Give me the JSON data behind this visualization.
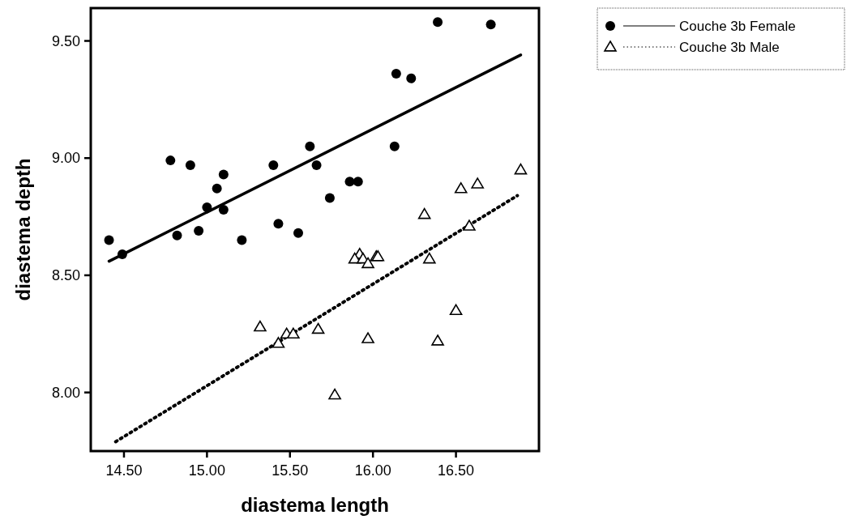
{
  "chart_data": {
    "type": "scatter",
    "xlabel": "diastema length",
    "ylabel": "diastema depth",
    "xlim": [
      14.3,
      17.0
    ],
    "ylim": [
      7.75,
      9.64
    ],
    "xticks": [
      {
        "value": 14.5,
        "label": "14.50"
      },
      {
        "value": 15,
        "label": "15.00"
      },
      {
        "value": 15.5,
        "label": "15.50"
      },
      {
        "value": 16,
        "label": "16.00"
      },
      {
        "value": 16.5,
        "label": "16.50"
      }
    ],
    "yticks": [
      {
        "value": 8,
        "label": "8.00"
      },
      {
        "value": 8.5,
        "label": "8.50"
      },
      {
        "value": 9,
        "label": "9.00"
      },
      {
        "value": 9.5,
        "label": "9.50"
      }
    ],
    "grid": false,
    "legend": "top right",
    "series": [
      {
        "name": "Couche 3b Female",
        "marker": "circle",
        "color": "#000000",
        "x": [
          14.41,
          14.49,
          14.78,
          14.9,
          14.82,
          14.95,
          15.0,
          15.06,
          15.1,
          15.1,
          15.21,
          15.4,
          15.43,
          15.55,
          15.62,
          15.66,
          15.74,
          16.39,
          16.71,
          16.14,
          16.23,
          16.13,
          15.86,
          15.91
        ],
        "values": [
          8.65,
          8.59,
          8.99,
          8.97,
          8.67,
          8.69,
          8.79,
          8.87,
          8.93,
          8.78,
          8.65,
          8.97,
          8.72,
          8.68,
          9.05,
          8.97,
          8.83,
          9.58,
          9.57,
          9.36,
          9.34,
          9.05,
          8.9,
          8.9
        ]
      },
      {
        "type": "line",
        "line_style": "solid",
        "color": "#000000",
        "x": [
          14.41,
          16.89
        ],
        "values": [
          8.56,
          9.44
        ]
      },
      {
        "name": "Couche 3b Male",
        "marker": "triangle",
        "color": "#000000",
        "x": [
          16.89,
          16.63,
          16.53,
          16.31,
          16.58,
          16.34,
          15.92,
          15.89,
          15.94,
          15.97,
          16.02,
          16.03,
          16.5,
          15.97,
          16.39,
          15.77,
          15.32,
          15.43,
          15.48,
          15.52,
          15.67
        ],
        "values": [
          8.95,
          8.89,
          8.87,
          8.76,
          8.71,
          8.57,
          8.59,
          8.57,
          8.57,
          8.55,
          8.58,
          8.58,
          8.35,
          8.23,
          8.22,
          7.99,
          8.28,
          8.21,
          8.25,
          8.25,
          8.27
        ]
      },
      {
        "type": "line",
        "line_style": "dotted",
        "color": "#000000",
        "x": [
          14.45,
          16.87
        ],
        "values": [
          7.79,
          8.84
        ]
      }
    ]
  }
}
